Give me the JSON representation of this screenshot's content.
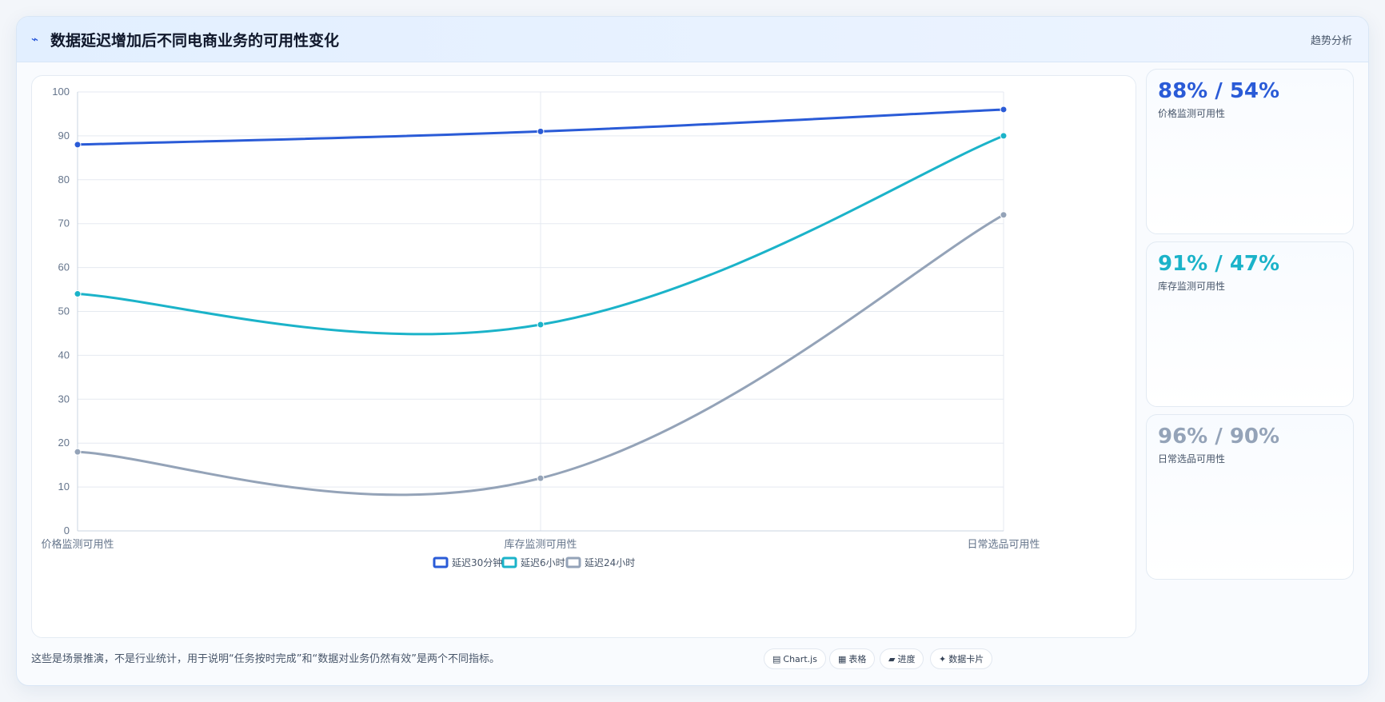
{
  "header": {
    "icon": "trend-icon",
    "title": "数据延迟增加后不同电商业务的可用性变化",
    "tag": "趋势分析"
  },
  "colors": {
    "series_1": "#2a5bd7",
    "series_2": "#1bb3c9",
    "series_3": "#94a3b8"
  },
  "chart_data": {
    "type": "line",
    "categories": [
      "价格监测可用性",
      "库存监测可用性",
      "日常选品可用性"
    ],
    "series": [
      {
        "name": "延迟30分钟",
        "values": [
          88,
          91,
          96
        ],
        "color": "#2a5bd7"
      },
      {
        "name": "延迟6小时",
        "values": [
          54,
          47,
          90
        ],
        "color": "#1bb3c9"
      },
      {
        "name": "延迟24小时",
        "values": [
          18,
          12,
          72
        ],
        "color": "#94a3b8"
      }
    ],
    "ylim": [
      0,
      100
    ],
    "yticks": [
      0,
      10,
      20,
      30,
      40,
      50,
      60,
      70,
      80,
      90,
      100
    ],
    "grid": true,
    "legend": "bottom-center",
    "smooth": true
  },
  "stats": [
    {
      "value": "88% / 54%",
      "label": "价格监测可用性",
      "color": "#2a5bd7"
    },
    {
      "value": "91% / 47%",
      "label": "库存监测可用性",
      "color": "#1bb3c9"
    },
    {
      "value": "96% / 90%",
      "label": "日常选品可用性",
      "color": "#94a3b8"
    }
  ],
  "footnote": "这些是场景推演，不是行业统计，用于说明“任务按时完成”和“数据对业务仍然有效”是两个不同指标。",
  "pills": [
    {
      "icon": "chart-icon",
      "glyph": "▤",
      "label": "Chart.js"
    },
    {
      "icon": "table-icon",
      "glyph": "▦",
      "label": "表格"
    },
    {
      "icon": "progress-icon",
      "glyph": "▰",
      "label": "进度"
    },
    {
      "icon": "sparkle-icon",
      "glyph": "✦",
      "label": "数据卡片"
    }
  ]
}
